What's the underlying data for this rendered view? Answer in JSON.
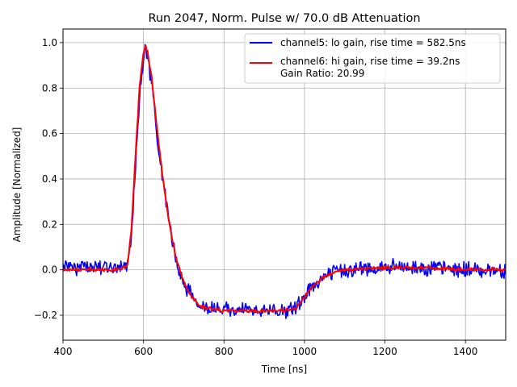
{
  "chart_data": {
    "type": "line",
    "title": "Run 2047, Norm. Pulse w/ 70.0 dB Attenuation",
    "xlabel": "Time [ns]",
    "ylabel": "Amplitude [Normalized]",
    "xlim": [
      400,
      1500
    ],
    "ylim": [
      -0.31,
      1.06
    ],
    "xticks": [
      400,
      600,
      800,
      1000,
      1200,
      1400
    ],
    "yticks": [
      -0.2,
      0.0,
      0.2,
      0.4,
      0.6,
      0.8,
      1.0
    ],
    "xtick_labels": [
      "400",
      "600",
      "800",
      "1000",
      "1200",
      "1400"
    ],
    "ytick_labels": [
      "−0.2",
      "0.0",
      "0.2",
      "0.4",
      "0.6",
      "0.8",
      "1.0"
    ],
    "grid": true,
    "legend_position": "upper-right",
    "legend_extra": "Gain Ratio: 20.99",
    "series": [
      {
        "name": "channel5: lo gain, rise time = 582.5ns",
        "color": "#0000ff",
        "noise": 0.028,
        "x": [
          400,
          540,
          560,
          570,
          580,
          590,
          600,
          605,
          610,
          620,
          630,
          640,
          650,
          660,
          670,
          680,
          690,
          700,
          710,
          720,
          730,
          740,
          760,
          800,
          900,
          950,
          980,
          1000,
          1020,
          1050,
          1080,
          1100,
          1200,
          1300,
          1400,
          1500
        ],
        "y": [
          0.01,
          0.01,
          0.02,
          0.15,
          0.45,
          0.75,
          0.92,
          0.97,
          0.93,
          0.82,
          0.65,
          0.5,
          0.38,
          0.25,
          0.15,
          0.06,
          0.0,
          -0.05,
          -0.09,
          -0.12,
          -0.14,
          -0.16,
          -0.17,
          -0.18,
          -0.18,
          -0.18,
          -0.17,
          -0.12,
          -0.07,
          -0.03,
          -0.01,
          0.0,
          0.01,
          0.01,
          0.0,
          0.0
        ]
      },
      {
        "name": "channel6: hi gain, rise time = 39.2ns",
        "color": "#ff0000",
        "noise": 0.006,
        "x": [
          400,
          540,
          560,
          570,
          580,
          590,
          600,
          605,
          610,
          620,
          630,
          640,
          650,
          660,
          670,
          680,
          690,
          700,
          710,
          720,
          730,
          740,
          760,
          800,
          900,
          950,
          980,
          1000,
          1020,
          1050,
          1080,
          1100,
          1200,
          1300,
          1400,
          1500
        ],
        "y": [
          0.0,
          0.0,
          0.02,
          0.18,
          0.5,
          0.8,
          0.95,
          0.99,
          0.96,
          0.85,
          0.68,
          0.52,
          0.38,
          0.25,
          0.15,
          0.06,
          0.0,
          -0.05,
          -0.09,
          -0.12,
          -0.14,
          -0.16,
          -0.17,
          -0.18,
          -0.18,
          -0.18,
          -0.17,
          -0.12,
          -0.07,
          -0.03,
          -0.01,
          0.0,
          0.01,
          0.01,
          0.0,
          0.0
        ]
      }
    ]
  }
}
